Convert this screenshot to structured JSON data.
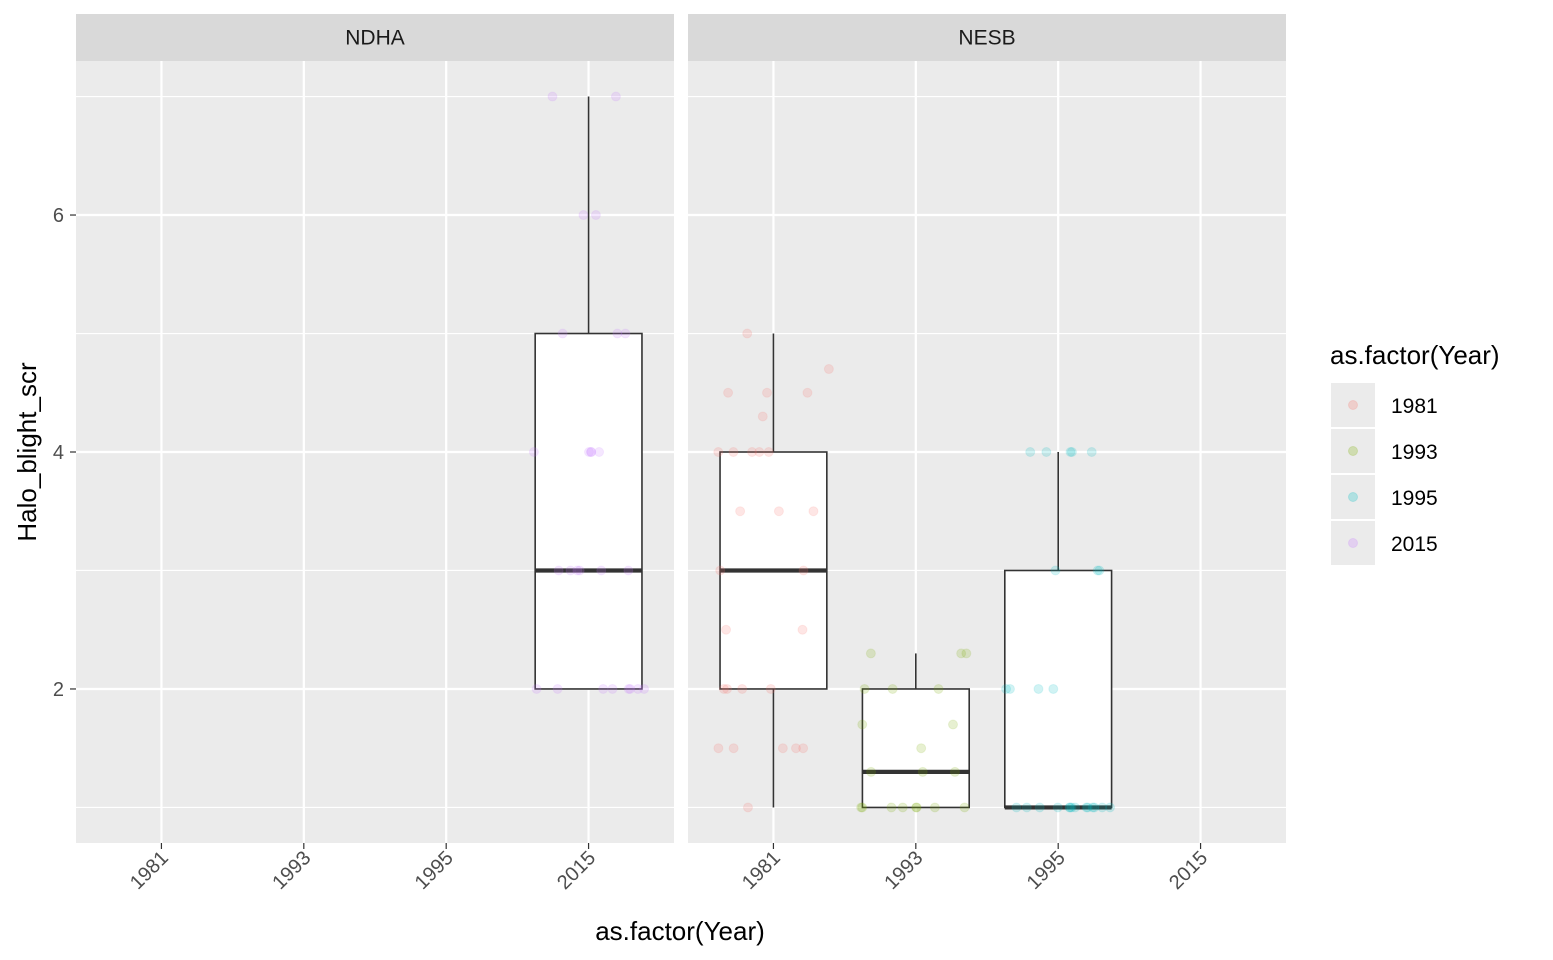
{
  "chart_data": {
    "type": "box",
    "facet_var": "Site",
    "facets": [
      "NDHA",
      "NESB"
    ],
    "categories": [
      "1981",
      "1993",
      "1995",
      "2015"
    ],
    "xlabel": "as.factor(Year)",
    "ylabel": "Halo_blight_scr",
    "ylim": [
      0.7,
      7.3
    ],
    "y_ticks": [
      2,
      4,
      6
    ],
    "grid": true,
    "legend": {
      "title": "as.factor(Year)",
      "position": "right",
      "entries": [
        {
          "label": "1981",
          "color": "#F8766D"
        },
        {
          "label": "1993",
          "color": "#7CAE00"
        },
        {
          "label": "1995",
          "color": "#00BFC4"
        },
        {
          "label": "2015",
          "color": "#C77CFF"
        }
      ]
    },
    "boxes": [
      {
        "facet": "NDHA",
        "category": "2015",
        "lower_whisker": 2,
        "q1": 2,
        "median": 3,
        "q3": 5,
        "upper_whisker": 7
      },
      {
        "facet": "NESB",
        "category": "1981",
        "lower_whisker": 1,
        "q1": 2,
        "median": 3,
        "q3": 4,
        "upper_whisker": 5
      },
      {
        "facet": "NESB",
        "category": "1993",
        "lower_whisker": 1,
        "q1": 1,
        "median": 1.3,
        "q3": 2,
        "upper_whisker": 2.3
      },
      {
        "facet": "NESB",
        "category": "1995",
        "lower_whisker": 1,
        "q1": 1,
        "median": 1,
        "q3": 3,
        "upper_whisker": 4
      }
    ],
    "points": [
      {
        "facet": "NDHA",
        "category": "2015",
        "values": [
          7,
          7,
          6,
          6,
          5,
          5,
          5,
          4,
          4,
          4,
          4,
          4,
          3,
          3,
          3,
          3,
          3,
          3,
          2,
          2,
          2,
          2,
          2,
          2,
          2,
          2
        ]
      },
      {
        "facet": "NESB",
        "category": "1981",
        "values": [
          5,
          4.7,
          4.5,
          4.5,
          4.5,
          4.3,
          4,
          4,
          4,
          4,
          4,
          3.5,
          3.5,
          3.5,
          3,
          3,
          2.5,
          2.5,
          2,
          2,
          2,
          2,
          1.5,
          1.5,
          1.5,
          1.5,
          1.5,
          1
        ]
      },
      {
        "facet": "NESB",
        "category": "1993",
        "values": [
          2.3,
          2.3,
          2.3,
          2,
          2,
          2,
          1.7,
          1.7,
          1.5,
          1.3,
          1.3,
          1.3,
          1,
          1,
          1,
          1,
          1,
          1,
          1,
          1
        ]
      },
      {
        "facet": "NESB",
        "category": "1995",
        "values": [
          4,
          4,
          4,
          4,
          4,
          3,
          3,
          3,
          2,
          2,
          2,
          2,
          1,
          1,
          1,
          1,
          1,
          1,
          1,
          1,
          1,
          1,
          1,
          1,
          1,
          1
        ]
      }
    ]
  }
}
